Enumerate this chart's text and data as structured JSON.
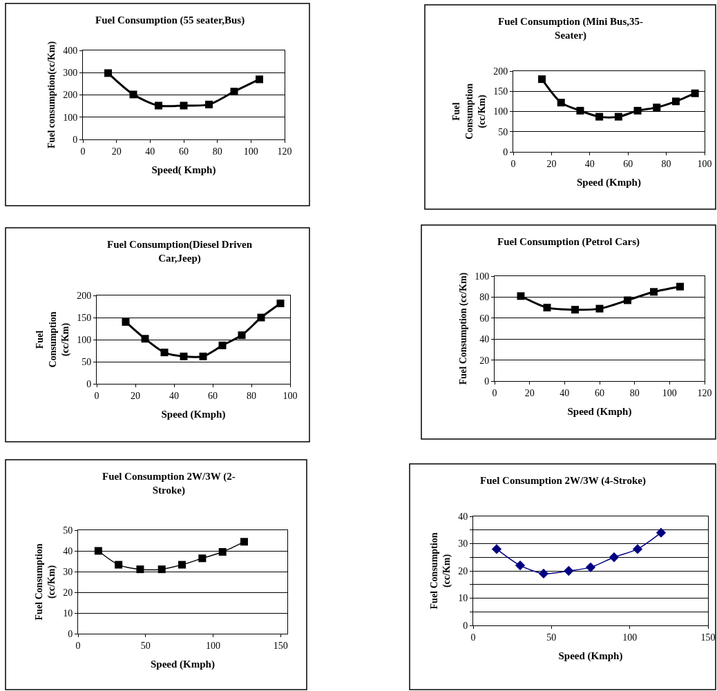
{
  "chart_data": [
    {
      "type": "line",
      "title": "Fuel Consumption (55 seater,Bus)",
      "xlabel": "Speed( Kmph)",
      "ylabel": "Fuel consumption(cc/Km)",
      "x": [
        15,
        30,
        45,
        60,
        75,
        90,
        105
      ],
      "series": [
        {
          "color": "#000000",
          "values": [
            298,
            202,
            152,
            152,
            157,
            215,
            270
          ]
        }
      ],
      "xlim": [
        0,
        120
      ],
      "xticks": [
        0,
        20,
        40,
        60,
        80,
        100,
        120
      ],
      "ylim": [
        0,
        400
      ],
      "yticks": [
        0,
        100,
        200,
        300,
        400
      ],
      "grid": "y",
      "marker": "square"
    },
    {
      "type": "line",
      "title": "Fuel Consumption (Mini Bus,35-Seater)",
      "xlabel": "Speed (Kmph)",
      "ylabel": "Fuel Consumption (cc/Km)",
      "x": [
        15,
        25,
        35,
        45,
        55,
        65,
        75,
        85,
        95
      ],
      "series": [
        {
          "color": "#000000",
          "values": [
            180,
            122,
            102,
            87,
            87,
            102,
            110,
            125,
            145
          ]
        }
      ],
      "xlim": [
        0,
        100
      ],
      "xticks": [
        0,
        20,
        40,
        60,
        80,
        100
      ],
      "ylim": [
        0,
        200
      ],
      "yticks": [
        0,
        50,
        100,
        150,
        200
      ],
      "grid": "y",
      "marker": "square"
    },
    {
      "type": "line",
      "title": "Fuel Consumption(Diesel Driven Car,Jeep)",
      "xlabel": "Speed (Kmph)",
      "ylabel": "Fuel Consumption (cc/Km)",
      "x": [
        15,
        25,
        35,
        45,
        55,
        65,
        75,
        85,
        95
      ],
      "series": [
        {
          "color": "#000000",
          "values": [
            140,
            102,
            71,
            62,
            62,
            87,
            110,
            150,
            182
          ]
        }
      ],
      "xlim": [
        0,
        100
      ],
      "xticks": [
        0,
        20,
        40,
        60,
        80,
        100
      ],
      "ylim": [
        0,
        200
      ],
      "yticks": [
        0,
        50,
        100,
        150,
        200
      ],
      "grid": "y",
      "marker": "square"
    },
    {
      "type": "line",
      "title": "Fuel Consumption (Petrol Cars)",
      "xlabel": "Speed (Kmph)",
      "ylabel": "Fuel Consumption (cc/Km)",
      "x": [
        15,
        30,
        46,
        60,
        76,
        91,
        106
      ],
      "series": [
        {
          "color": "#000000",
          "values": [
            81,
            70,
            68,
            69,
            77,
            85,
            90
          ]
        }
      ],
      "xlim": [
        0,
        120
      ],
      "xticks": [
        0,
        20,
        40,
        60,
        80,
        100,
        120
      ],
      "ylim": [
        0,
        100
      ],
      "yticks": [
        0,
        20,
        40,
        60,
        80,
        100
      ],
      "grid": "y",
      "marker": "square"
    },
    {
      "type": "line",
      "title": "Fuel Consumption 2W/3W (2-Stroke)",
      "xlabel": "Speed (Kmph)",
      "ylabel": "Fuel Consumption (cc/Km)",
      "x": [
        15,
        30,
        46,
        62,
        77,
        92,
        107,
        123
      ],
      "series": [
        {
          "color": "#000000",
          "values": [
            40,
            33.3,
            31.1,
            31.1,
            33.3,
            36.4,
            39.5,
            44.4
          ]
        }
      ],
      "xlim": [
        0,
        155
      ],
      "xticks": [
        0,
        50,
        100,
        150
      ],
      "ylim": [
        0,
        50
      ],
      "yticks": [
        0,
        10,
        20,
        30,
        40,
        50
      ],
      "grid": "y",
      "marker": "square"
    },
    {
      "type": "line",
      "title": "Fuel Consumption 2W/3W (4-Stroke)",
      "xlabel": "Speed (Kmph)",
      "ylabel": "Fuel Consumption (cc/Km)",
      "x": [
        15,
        30,
        45,
        61,
        75,
        90,
        105,
        120
      ],
      "series": [
        {
          "color": "#000080",
          "values": [
            28,
            22,
            19,
            20,
            21.3,
            25,
            28,
            34
          ]
        }
      ],
      "xlim": [
        0,
        150
      ],
      "xticks": [
        0,
        50,
        100,
        150
      ],
      "ylim": [
        0,
        40
      ],
      "yticks": [
        0,
        {
          "value": 5,
          "label": null
        },
        10,
        {
          "value": 15,
          "label": null
        },
        20,
        {
          "value": 25,
          "label": null
        },
        30,
        {
          "value": 35,
          "label": null
        },
        40
      ],
      "grid": "y",
      "marker": "diamond"
    }
  ]
}
